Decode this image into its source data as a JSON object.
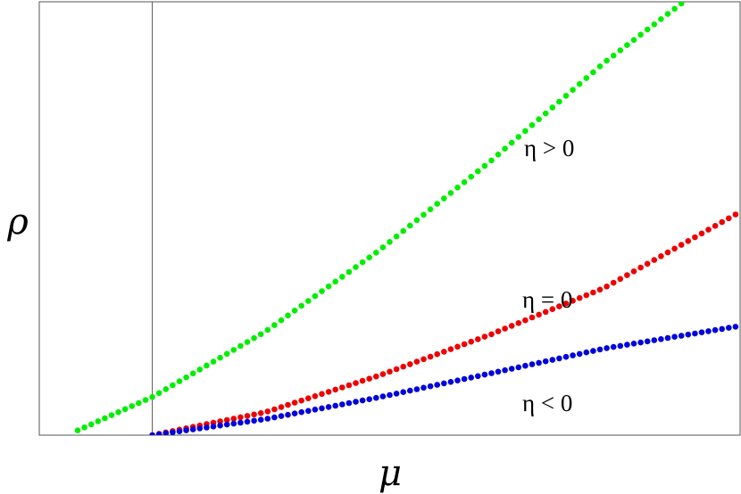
{
  "chart_data": {
    "type": "scatter",
    "xlabel": "μ",
    "ylabel": "ρ",
    "xlim": [
      -0.5,
      2.6
    ],
    "ylim": [
      0,
      1.0
    ],
    "ticks": "none",
    "grid": false,
    "vertical_reference_line_x": 0,
    "annotations": [
      {
        "text": "η > 0",
        "series_color": "#00ee00"
      },
      {
        "text": "η = 0",
        "series_color": "#ee0000"
      },
      {
        "text": "η < 0",
        "series_color": "#0000dd"
      }
    ],
    "series": [
      {
        "color": "#00ee00",
        "x_range": [
          -0.33,
          2.6
        ],
        "formula_samples": [
          [
            -0.33,
            0.011
          ],
          [
            0,
            0.088
          ],
          [
            0.5,
            0.239
          ],
          [
            1.0,
            0.425
          ],
          [
            1.5,
            0.634
          ],
          [
            2.0,
            0.86
          ],
          [
            2.35,
            1.0
          ]
        ]
      },
      {
        "color": "#ee0000",
        "x_range": [
          0,
          2.6
        ],
        "formula_samples": [
          [
            0,
            0.0
          ],
          [
            0.5,
            0.053
          ],
          [
            1.0,
            0.137
          ],
          [
            1.5,
            0.233
          ],
          [
            2.0,
            0.34
          ],
          [
            2.6,
            0.515
          ]
        ]
      },
      {
        "color": "#0000dd",
        "x_range": [
          0,
          2.6
        ],
        "formula_samples": [
          [
            0,
            0.0
          ],
          [
            0.5,
            0.037
          ],
          [
            1.0,
            0.087
          ],
          [
            1.5,
            0.143
          ],
          [
            2.0,
            0.2
          ],
          [
            2.6,
            0.252
          ]
        ]
      }
    ]
  }
}
